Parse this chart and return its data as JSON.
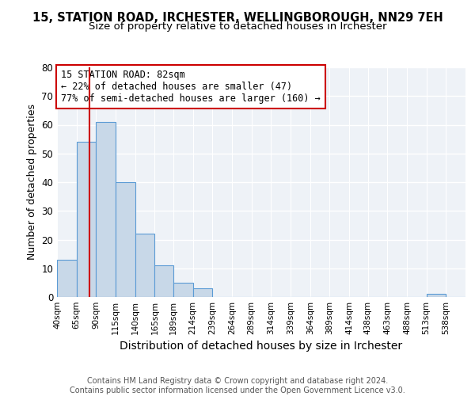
{
  "title": "15, STATION ROAD, IRCHESTER, WELLINGBOROUGH, NN29 7EH",
  "subtitle": "Size of property relative to detached houses in Irchester",
  "xlabel": "Distribution of detached houses by size in Irchester",
  "ylabel": "Number of detached properties",
  "bin_edges": [
    40,
    65,
    90,
    115,
    140,
    165,
    189,
    214,
    239,
    264,
    289,
    314,
    339,
    364,
    389,
    414,
    438,
    463,
    488,
    513,
    538,
    563
  ],
  "bar_heights": [
    13,
    54,
    61,
    40,
    22,
    11,
    5,
    3,
    0,
    0,
    0,
    0,
    0,
    0,
    0,
    0,
    0,
    0,
    0,
    1,
    0
  ],
  "bar_color": "#c8d8e8",
  "bar_edgecolor": "#5b9bd5",
  "bar_linewidth": 0.8,
  "property_size": 82,
  "red_line_color": "#cc0000",
  "annotation_line1": "15 STATION ROAD: 82sqm",
  "annotation_line2": "← 22% of detached houses are smaller (47)",
  "annotation_line3": "77% of semi-detached houses are larger (160) →",
  "annotation_box_color": "#ffffff",
  "annotation_box_edgecolor": "#cc0000",
  "ylim": [
    0,
    80
  ],
  "yticks": [
    0,
    10,
    20,
    30,
    40,
    50,
    60,
    70,
    80
  ],
  "tick_labels": [
    "40sqm",
    "65sqm",
    "90sqm",
    "115sqm",
    "140sqm",
    "165sqm",
    "189sqm",
    "214sqm",
    "239sqm",
    "264sqm",
    "289sqm",
    "314sqm",
    "339sqm",
    "364sqm",
    "389sqm",
    "414sqm",
    "438sqm",
    "463sqm",
    "488sqm",
    "513sqm",
    "538sqm"
  ],
  "footer_text": "Contains HM Land Registry data © Crown copyright and database right 2024.\nContains public sector information licensed under the Open Government Licence v3.0.",
  "background_color": "#eef2f7",
  "grid_color": "#ffffff",
  "title_fontsize": 10.5,
  "subtitle_fontsize": 9.5,
  "axis_label_fontsize": 9,
  "tick_fontsize": 7.5,
  "annotation_fontsize": 8.5,
  "footer_fontsize": 7
}
